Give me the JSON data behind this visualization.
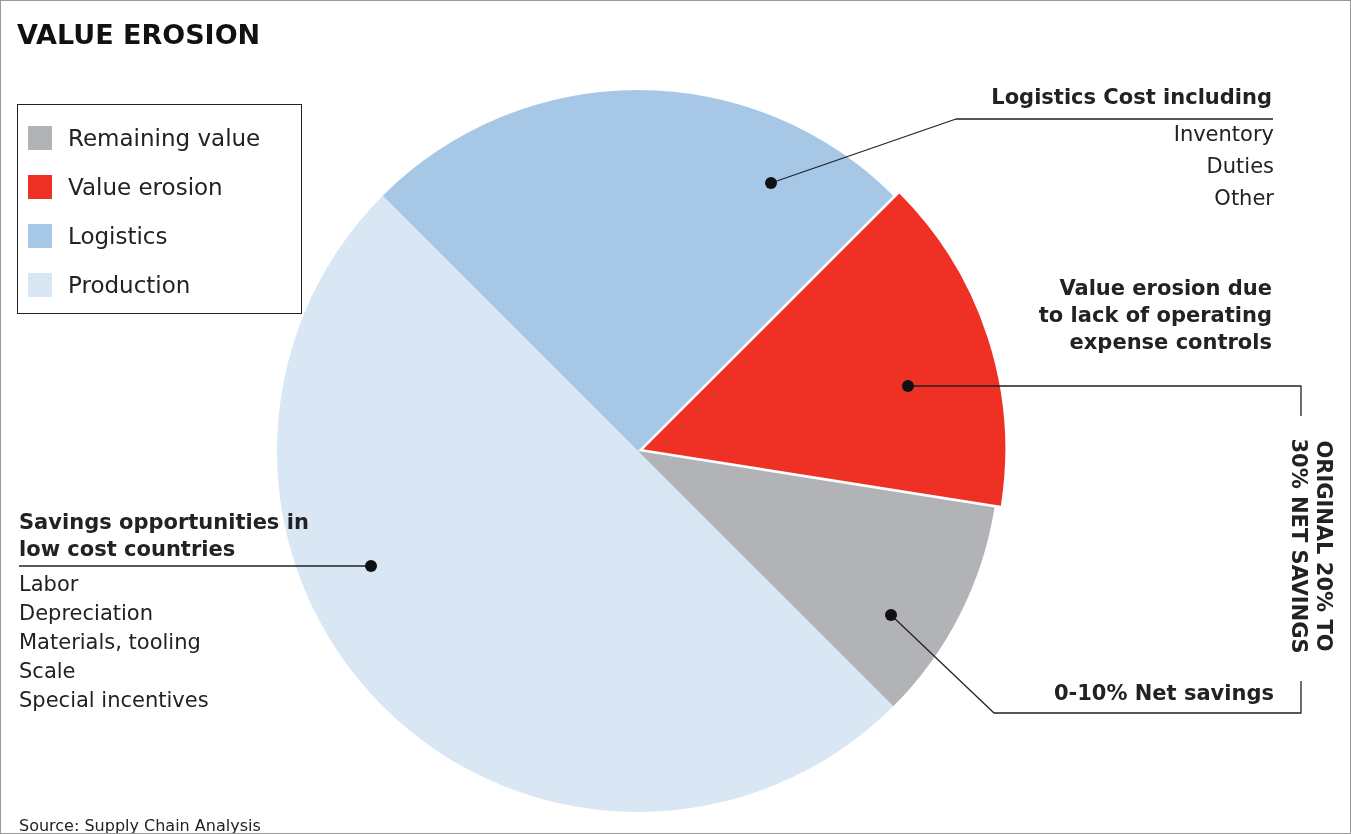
{
  "chart_data": {
    "type": "pie",
    "title": "VALUE EROSION",
    "categories": [
      "Production",
      "Logistics",
      "Value erosion",
      "Remaining value"
    ],
    "values": [
      50,
      25,
      15,
      10
    ],
    "colors": [
      "#d9e6f4",
      "#a7c7e7",
      "#ee3124",
      "#b1b3b6"
    ],
    "legend": "top left",
    "annotations": [
      "Logistics Cost including",
      "Inventory",
      "Duties",
      "Other",
      "Value erosion due to lack of operating expense controls",
      "0-10% Net savings",
      "ORIGINAL 20% TO 30% NET SAVINGS",
      "Savings opportunities in low cost countries",
      "Labor",
      "Depreciation",
      "Materials, tooling",
      "Scale",
      "Special incentives",
      "Source: Supply Chain Analysis"
    ]
  }
}
